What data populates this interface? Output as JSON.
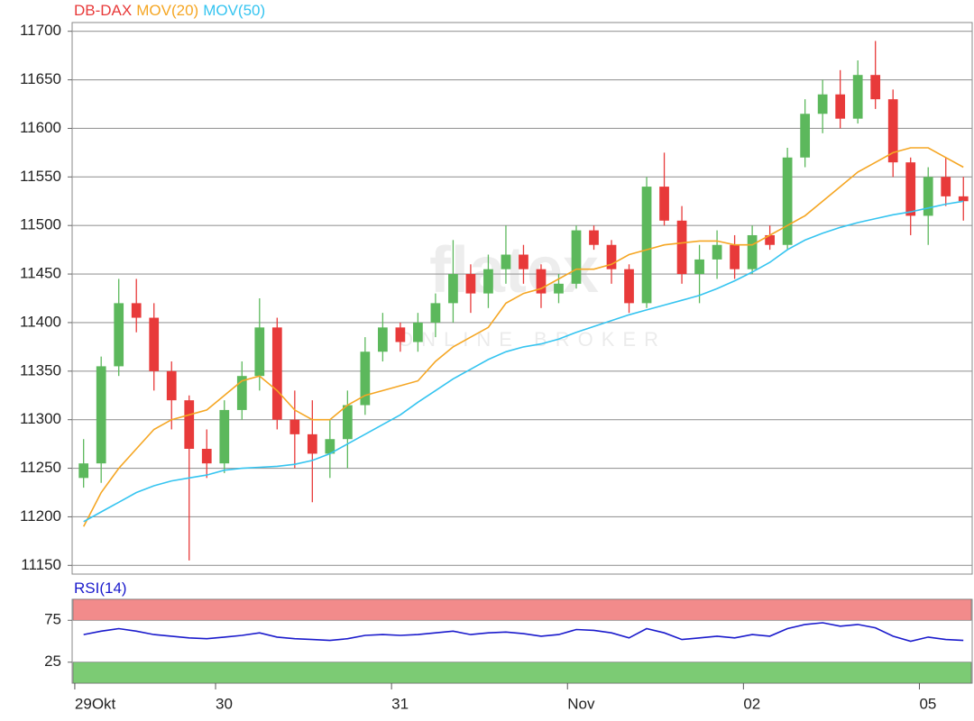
{
  "chart_data": [
    {
      "type": "candlestick",
      "watermark": [
        "flatex",
        "ONLINE BROKER"
      ],
      "x": [
        0.5,
        1.5,
        2.5,
        3.5,
        4.5,
        5.5,
        6.5,
        7.5,
        8.5,
        9.5,
        10.5,
        11.5,
        12.5,
        13.5,
        14.5,
        15.5,
        16.5,
        17.5,
        18.5,
        19.5,
        20.5,
        21.5,
        22.5,
        23.5,
        24.5,
        25.5,
        26.5,
        27.5,
        28.5,
        29.5,
        30.5,
        31.5,
        32.5,
        33.5,
        34.5,
        35.5,
        36.5,
        37.5,
        38.5,
        39.5,
        40.5,
        41.5,
        42.5,
        43.5,
        44.5,
        45.5,
        46.5,
        47.5,
        48.5,
        49.5,
        50.5
      ],
      "xlim": [
        -0.15,
        51
      ],
      "ylim": [
        11141,
        11709
      ],
      "yticks": [
        11150,
        11200,
        11250,
        11300,
        11350,
        11400,
        11450,
        11500,
        11550,
        11600,
        11650,
        11700
      ],
      "grid": true,
      "series": [
        {
          "name": "DB-DAX",
          "type": "candlestick",
          "color": "#e83a3a",
          "up_color": "#5cb85c",
          "down_color": "#e83a3a",
          "open": [
            11240,
            11255,
            11355,
            11420,
            11405,
            11350,
            11320,
            11270,
            11255,
            11310,
            11345,
            11395,
            11300,
            11285,
            11265,
            11280,
            11315,
            11370,
            11395,
            11380,
            11400,
            11420,
            11450,
            11430,
            11455,
            11470,
            11455,
            11430,
            11440,
            11495,
            11480,
            11455,
            11420,
            11540,
            11505,
            11450,
            11465,
            11480,
            11455,
            11490,
            11480,
            11570,
            11615,
            11635,
            11610,
            11655,
            11630,
            11565,
            11510,
            11550,
            11530
          ],
          "high": [
            11280,
            11365,
            11445,
            11445,
            11420,
            11360,
            11325,
            11290,
            11320,
            11360,
            11425,
            11405,
            11330,
            11320,
            11300,
            11330,
            11385,
            11410,
            11400,
            11410,
            11430,
            11485,
            11460,
            11470,
            11500,
            11480,
            11460,
            11450,
            11500,
            11500,
            11485,
            11460,
            11550,
            11575,
            11520,
            11480,
            11495,
            11490,
            11500,
            11500,
            11580,
            11630,
            11650,
            11660,
            11670,
            11690,
            11640,
            11570,
            11560,
            11570,
            11550
          ],
          "low": [
            11230,
            11235,
            11345,
            11390,
            11330,
            11290,
            11155,
            11240,
            11245,
            11300,
            11330,
            11290,
            11250,
            11215,
            11240,
            11250,
            11305,
            11360,
            11370,
            11370,
            11385,
            11400,
            11410,
            11415,
            11440,
            11440,
            11415,
            11420,
            11435,
            11475,
            11440,
            11410,
            11415,
            11500,
            11440,
            11420,
            11445,
            11445,
            11450,
            11475,
            11475,
            11560,
            11595,
            11600,
            11605,
            11620,
            11550,
            11490,
            11480,
            11520,
            11505
          ],
          "close": [
            11255,
            11355,
            11420,
            11405,
            11350,
            11320,
            11270,
            11255,
            11310,
            11345,
            11395,
            11300,
            11285,
            11265,
            11280,
            11315,
            11370,
            11395,
            11380,
            11400,
            11420,
            11450,
            11430,
            11455,
            11470,
            11455,
            11430,
            11440,
            11495,
            11480,
            11455,
            11420,
            11540,
            11505,
            11450,
            11465,
            11480,
            11455,
            11490,
            11480,
            11570,
            11615,
            11635,
            11610,
            11655,
            11630,
            11565,
            11510,
            11550,
            11530,
            11525
          ]
        },
        {
          "name": "MOV(20)",
          "type": "line",
          "color": "#f5a623",
          "values": [
            11190,
            11225,
            11250,
            11270,
            11290,
            11300,
            11305,
            11310,
            11325,
            11340,
            11345,
            11330,
            11310,
            11300,
            11300,
            11315,
            11325,
            11330,
            11335,
            11340,
            11360,
            11375,
            11385,
            11395,
            11420,
            11430,
            11435,
            11445,
            11455,
            11455,
            11460,
            11470,
            11475,
            11480,
            11482,
            11484,
            11484,
            11480,
            11480,
            11490,
            11500,
            11510,
            11525,
            11540,
            11555,
            11565,
            11575,
            11580,
            11580,
            11570,
            11560
          ]
        },
        {
          "name": "MOV(50)",
          "type": "line",
          "color": "#35c4f0",
          "values": [
            11195,
            11205,
            11215,
            11225,
            11232,
            11237,
            11240,
            11243,
            11248,
            11250,
            11251,
            11252,
            11254,
            11258,
            11265,
            11275,
            11285,
            11295,
            11305,
            11318,
            11330,
            11342,
            11352,
            11362,
            11370,
            11375,
            11378,
            11383,
            11390,
            11396,
            11402,
            11408,
            11413,
            11418,
            11423,
            11428,
            11435,
            11443,
            11452,
            11462,
            11475,
            11485,
            11492,
            11498,
            11503,
            11507,
            11511,
            11514,
            11518,
            11522,
            11525
          ]
        }
      ]
    },
    {
      "type": "line",
      "x": [
        0.5,
        1.5,
        2.5,
        3.5,
        4.5,
        5.5,
        6.5,
        7.5,
        8.5,
        9.5,
        10.5,
        11.5,
        12.5,
        13.5,
        14.5,
        15.5,
        16.5,
        17.5,
        18.5,
        19.5,
        20.5,
        21.5,
        22.5,
        23.5,
        24.5,
        25.5,
        26.5,
        27.5,
        28.5,
        29.5,
        30.5,
        31.5,
        32.5,
        33.5,
        34.5,
        35.5,
        36.5,
        37.5,
        38.5,
        39.5,
        40.5,
        41.5,
        42.5,
        43.5,
        44.5,
        45.5,
        46.5,
        47.5,
        48.5,
        49.5,
        50.5
      ],
      "xlim": [
        -0.15,
        51
      ],
      "xticks": [
        {
          "value": 0,
          "label": "29Okt"
        },
        {
          "value": 8,
          "label": "30"
        },
        {
          "value": 18,
          "label": "31"
        },
        {
          "value": 28,
          "label": "Nov"
        },
        {
          "value": 38,
          "label": "02"
        },
        {
          "value": 48,
          "label": "05"
        }
      ],
      "ylim": [
        0,
        100
      ],
      "yticks": [
        25,
        75
      ],
      "bands": [
        {
          "from": 75,
          "to": 100,
          "color": "#f28b8b"
        },
        {
          "from": 0,
          "to": 25,
          "color": "#7ccb74"
        }
      ],
      "series": [
        {
          "name": "RSI(14)",
          "color": "#1a1acc",
          "values": [
            58,
            62,
            65,
            62,
            58,
            56,
            54,
            53,
            55,
            57,
            60,
            55,
            53,
            52,
            51,
            53,
            57,
            58,
            57,
            58,
            60,
            62,
            58,
            60,
            61,
            59,
            56,
            58,
            64,
            63,
            60,
            54,
            65,
            60,
            52,
            54,
            56,
            54,
            58,
            56,
            65,
            70,
            72,
            68,
            70,
            66,
            56,
            50,
            55,
            52,
            51
          ]
        }
      ]
    }
  ]
}
